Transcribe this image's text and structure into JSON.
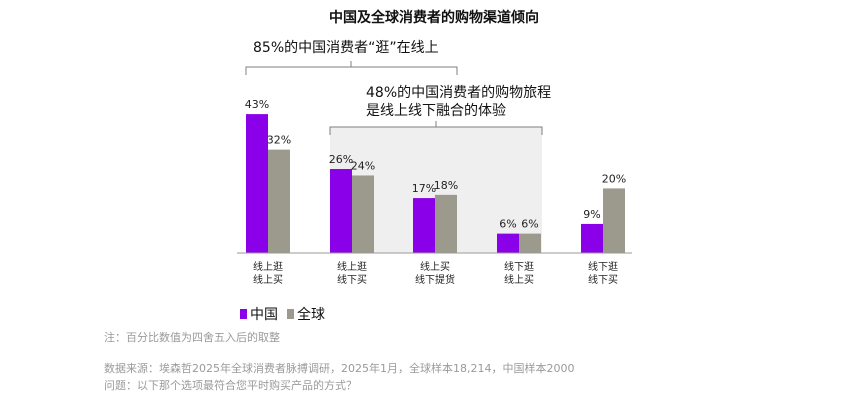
{
  "colors": {
    "china": "#8A00E8",
    "global": "#9C9A8C",
    "highlight": "#EFEFEF",
    "bracket": "#7f7f7f"
  },
  "title": "中国及全球消费者的购物渠道倾向",
  "callouts": {
    "online": "85%的中国消费者“逛”在线上",
    "omni_line1": "48%的中国消费者的购物旅程",
    "omni_line2": "是线上线下融合的体验"
  },
  "legend": {
    "china": "中国",
    "global": "全球"
  },
  "chart_data": {
    "type": "bar",
    "title": "中国及全球消费者的购物渠道倾向",
    "categories": [
      [
        "线上逛",
        "线上买"
      ],
      [
        "线上逛",
        "线下买"
      ],
      [
        "线上买",
        "线下提货"
      ],
      [
        "线下逛",
        "线上买"
      ],
      [
        "线下逛",
        "线下买"
      ]
    ],
    "series": [
      {
        "name": "中国",
        "values": [
          43,
          26,
          17,
          6,
          9
        ],
        "labels": [
          "43%",
          "26%",
          "17%",
          "6%",
          "9%"
        ]
      },
      {
        "name": "全球",
        "values": [
          32,
          24,
          18,
          6,
          20
        ],
        "labels": [
          "32%",
          "24%",
          "18%",
          "6%",
          "20%"
        ]
      }
    ],
    "ylim": [
      0,
      45
    ],
    "legend_position": "bottom-left",
    "grid": false
  },
  "footnotes": {
    "note": "注：百分比数值为四舍五入后的取整",
    "source": "数据来源：埃森哲2025年全球消费者脉搏调研，2025年1月，全球样本18,214，中国样本2000",
    "question": "问题：以下那个选项最符合您平时购买产品的方式？"
  }
}
